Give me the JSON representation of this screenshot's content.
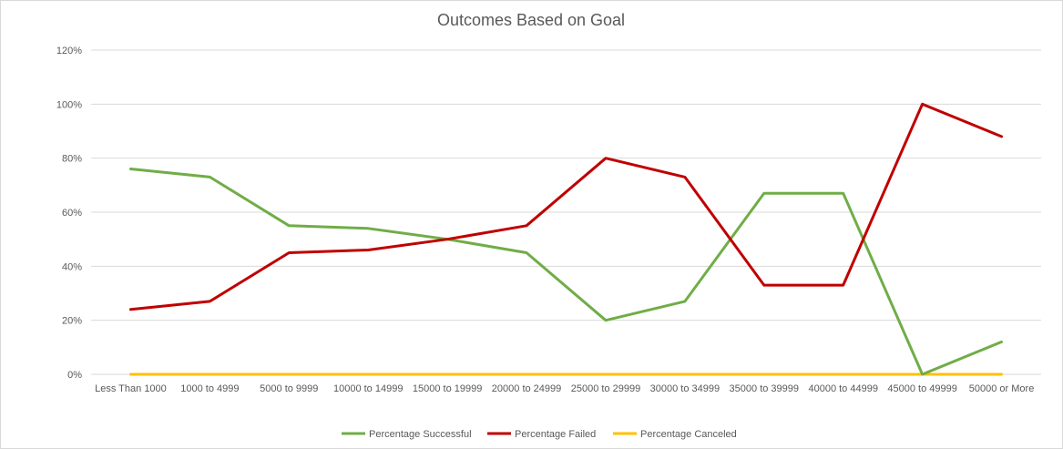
{
  "chart_data": {
    "type": "line",
    "title": "Outcomes Based on Goal",
    "xlabel": "",
    "ylabel": "",
    "categories": [
      "Less Than 1000",
      "1000 to 4999",
      "5000 to 9999",
      "10000 to 14999",
      "15000 to 19999",
      "20000 to 24999",
      "25000 to 29999",
      "30000 to 34999",
      "35000 to 39999",
      "40000 to 44999",
      "45000 to 49999",
      "50000 or More"
    ],
    "ylim": [
      0,
      1.2
    ],
    "yticks": [
      0,
      0.2,
      0.4,
      0.6,
      0.8,
      1.0,
      1.2
    ],
    "ytick_labels": [
      "0%",
      "20%",
      "40%",
      "60%",
      "80%",
      "100%",
      "120%"
    ],
    "grid": true,
    "legend_position": "bottom",
    "series": [
      {
        "name": "Percentage Successful",
        "color": "#70ad47",
        "values": [
          0.76,
          0.73,
          0.55,
          0.54,
          0.5,
          0.45,
          0.2,
          0.27,
          0.67,
          0.67,
          0.0,
          0.12
        ]
      },
      {
        "name": "Percentage Failed",
        "color": "#c00000",
        "values": [
          0.24,
          0.27,
          0.45,
          0.46,
          0.5,
          0.55,
          0.8,
          0.73,
          0.33,
          0.33,
          1.0,
          0.88
        ]
      },
      {
        "name": "Percentage Canceled",
        "color": "#ffc000",
        "values": [
          0,
          0,
          0,
          0,
          0,
          0,
          0,
          0,
          0,
          0,
          0,
          0
        ]
      }
    ]
  }
}
